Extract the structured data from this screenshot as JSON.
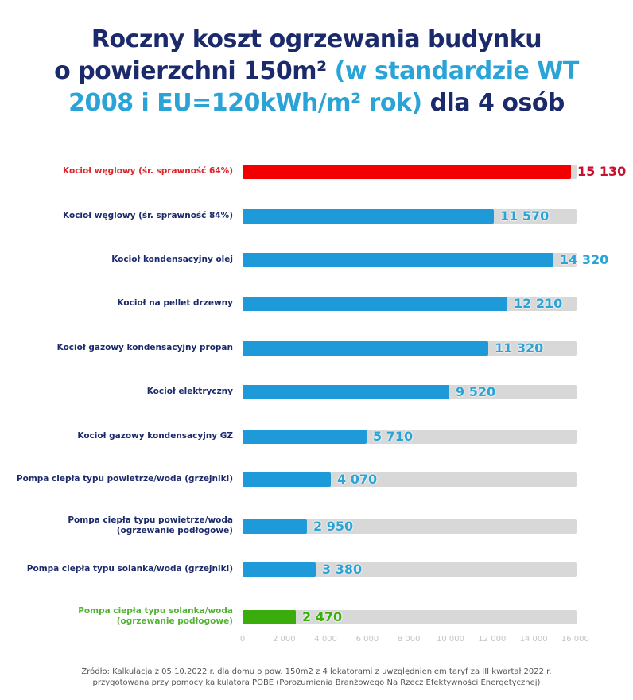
{
  "title": {
    "line1": "Roczny koszt ogrzewania budynku",
    "line2_a": "o powierzchni 150m² ",
    "line2_b": "(w standardzie WT",
    "line3_a": "2008 i EU=120kWh/m² rok)",
    "line3_b": " dla 4 osób"
  },
  "colors": {
    "default": "#1f9ad8",
    "worst": "#f20000",
    "best": "#3aad0c",
    "track": "#d8d8d8",
    "label": "#1b2a6b"
  },
  "footer": {
    "line1": "Źródło: Kalkulacja z 05.10.2022 r. dla domu o pow. 150m2 z 4 lokatorami z uwzględnieniem taryf za III kwartał 2022 r.",
    "line2": "przygotowana przy pomocy kalkulatora POBE (Porozumienia Branżowego Na Rzecz Efektywności Energetycznej)"
  },
  "chart_data": {
    "type": "bar",
    "orientation": "horizontal",
    "title": "Roczny koszt ogrzewania budynku o powierzchni 150m² (w standardzie WT 2008 i EU=120kWh/m² rok) dla 4 osób",
    "xlabel": "",
    "ylabel": "",
    "xlim": [
      0,
      16000
    ],
    "xticks": [
      "0",
      "2 000",
      "4 000",
      "6 000",
      "8 000",
      "10 000",
      "12 000",
      "14 000",
      "16 000"
    ],
    "categories": [
      "Kocioł węglowy (śr. sprawność 64%)",
      "Kocioł węglowy (śr. sprawność 84%)",
      "Kocioł kondensacyjny olej",
      "Kocioł na pellet drzewny",
      "Kocioł gazowy kondensacyjny propan",
      "Kocioł elektryczny",
      "Kocioł gazowy kondensacyjny GZ",
      "Pompa ciepła typu powietrze/woda (grzejniki)",
      "Pompa ciepła typu powietrze/woda (ogrzewanie podłogowe)",
      "Pompa ciepła typu solanka/woda (grzejniki)",
      "Pompa ciepła typu solanka/woda (ogrzewanie podłogowe)"
    ],
    "values": [
      15130,
      11570,
      14320,
      12210,
      11320,
      9520,
      5710,
      4070,
      2950,
      3380,
      2470
    ],
    "value_labels": [
      "15 130",
      "11 570",
      "14 320",
      "12 210",
      "11 320",
      "9 520",
      "5 710",
      "4 070",
      "2 950",
      "3 380",
      "2 470"
    ],
    "highlight": {
      "0": "red",
      "10": "green"
    },
    "grid": false,
    "legend": "none"
  },
  "rows": [
    {
      "l1": "Kocioł węglowy (śr. sprawność 64%)",
      "l2": "",
      "value": 15130,
      "text": "15 130",
      "kind": "worst"
    },
    {
      "l1": "Kocioł węglowy (śr. sprawność 84%)",
      "l2": "",
      "value": 11570,
      "text": "11 570",
      "kind": "default"
    },
    {
      "l1": "Kocioł kondensacyjny olej",
      "l2": "",
      "value": 14320,
      "text": "14 320",
      "kind": "default"
    },
    {
      "l1": "Kocioł na pellet drzewny",
      "l2": "",
      "value": 12210,
      "text": "12 210",
      "kind": "default"
    },
    {
      "l1": "Kocioł gazowy kondensacyjny propan",
      "l2": "",
      "value": 11320,
      "text": "11 320",
      "kind": "default"
    },
    {
      "l1": "Kocioł elektryczny",
      "l2": "",
      "value": 9520,
      "text": "9 520",
      "kind": "default"
    },
    {
      "l1": "Kocioł gazowy kondensacyjny GZ",
      "l2": "",
      "value": 5710,
      "text": "5 710",
      "kind": "default"
    },
    {
      "l1": "Pompa ciepła typu powietrze/woda (grzejniki)",
      "l2": "",
      "value": 4070,
      "text": "4 070",
      "kind": "default"
    },
    {
      "l1": "Pompa ciepła typu powietrze/woda",
      "l2": "(ogrzewanie podłogowe)",
      "value": 2950,
      "text": "2 950",
      "kind": "default"
    },
    {
      "l1": "Pompa ciepła typu solanka/woda (grzejniki)",
      "l2": "",
      "value": 3380,
      "text": "3 380",
      "kind": "default"
    },
    {
      "l1": "Pompa ciepła typu solanka/woda",
      "l2": "(ogrzewanie podłogowe)",
      "value": 2470,
      "text": "2 470",
      "kind": "best"
    }
  ]
}
